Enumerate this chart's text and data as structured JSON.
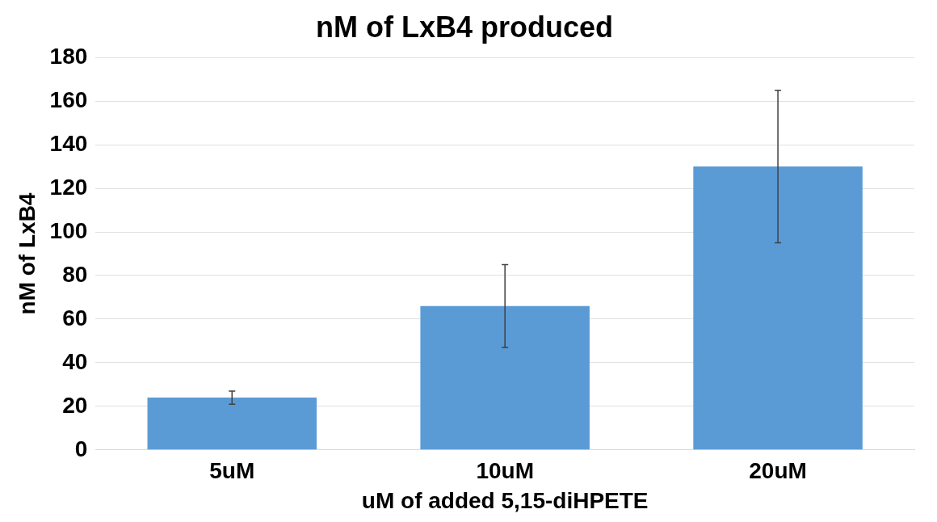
{
  "chart_data": {
    "type": "bar",
    "title": "nM of LxB4 produced",
    "xlabel": "uM of added 5,15-diHPETE",
    "ylabel": "nM of LxB4",
    "categories": [
      "5uM",
      "10uM",
      "20uM"
    ],
    "values": [
      24,
      66,
      130
    ],
    "errors": [
      3,
      19,
      35
    ],
    "color": "#5b9bd5",
    "ylim": [
      0,
      180
    ],
    "yticks": [
      0,
      20,
      40,
      60,
      80,
      100,
      120,
      140,
      160,
      180
    ],
    "grid": "y",
    "legend": false
  }
}
